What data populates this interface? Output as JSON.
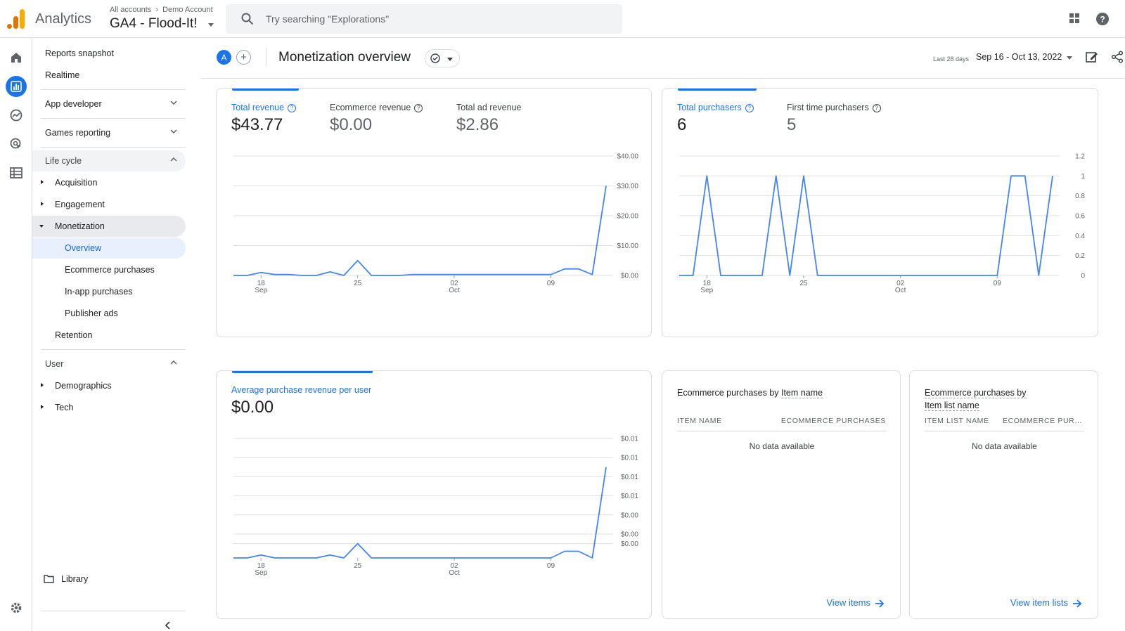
{
  "header": {
    "app_name": "Analytics",
    "breadcrumb": [
      "All accounts",
      "Demo Account"
    ],
    "property": "GA4 - Flood-It!",
    "search_placeholder": "Try searching \"Explorations\"",
    "icons": [
      "analytics-logo-icon",
      "search-icon",
      "apps-grid-icon",
      "help-icon"
    ]
  },
  "rail": {
    "icons": [
      "home-icon",
      "reports-icon",
      "explore-icon",
      "advertising-icon",
      "configure-icon",
      "settings-icon"
    ],
    "active": "reports-icon"
  },
  "nav": {
    "reports_snapshot": "Reports snapshot",
    "realtime": "Realtime",
    "app_developer": "App developer",
    "games_reporting": "Games reporting",
    "life_cycle": "Life cycle",
    "acquisition": "Acquisition",
    "engagement": "Engagement",
    "monetization": "Monetization",
    "overview": "Overview",
    "ecommerce_purchases": "Ecommerce purchases",
    "in_app_purchases": "In-app purchases",
    "publisher_ads": "Publisher ads",
    "retention": "Retention",
    "user": "User",
    "demographics": "Demographics",
    "tech": "Tech",
    "library": "Library"
  },
  "topbar": {
    "avatar_letter": "A",
    "add_symbol": "+",
    "page_title": "Monetization overview",
    "date_hint": "Last 28 days",
    "date_range": "Sep 16 - Oct 13, 2022"
  },
  "revenue_card": {
    "metrics": [
      {
        "label": "Total revenue",
        "value": "$43.77",
        "active": true
      },
      {
        "label": "Ecommerce revenue",
        "value": "$0.00",
        "active": false
      },
      {
        "label": "Total ad revenue",
        "value": "$2.86",
        "active": false
      }
    ]
  },
  "purchasers_card": {
    "metrics": [
      {
        "label": "Total purchasers",
        "value": "6",
        "active": true
      },
      {
        "label": "First time purchasers",
        "value": "5",
        "active": false
      }
    ]
  },
  "avg_card": {
    "label": "Average purchase revenue per user",
    "value": "$0.00"
  },
  "x_ticks": [
    {
      "day": 2,
      "label": "18",
      "sub": "Sep"
    },
    {
      "day": 9,
      "label": "25",
      "sub": ""
    },
    {
      "day": 16,
      "label": "02",
      "sub": "Oct"
    },
    {
      "day": 23,
      "label": "09",
      "sub": ""
    }
  ],
  "chart_data": [
    {
      "type": "line",
      "ylim": [
        0,
        40
      ],
      "y_ticks": [
        {
          "v": 40,
          "label": "$40.00"
        },
        {
          "v": 30,
          "label": "$30.00"
        },
        {
          "v": 20,
          "label": "$20.00"
        },
        {
          "v": 10,
          "label": "$10.00"
        },
        {
          "v": 0,
          "label": "$0.00"
        }
      ],
      "series": [
        {
          "values": [
            0,
            0,
            1.0,
            0.3,
            0.3,
            0,
            0,
            1.2,
            0,
            5.0,
            0,
            0,
            0,
            0.3,
            0.3,
            0.3,
            0.3,
            0.3,
            0.3,
            0.3,
            0.3,
            0.3,
            0.3,
            0.3,
            2.2,
            2.2,
            0.3,
            30.0
          ]
        }
      ]
    },
    {
      "type": "line",
      "ylim": [
        0,
        1.2
      ],
      "y_ticks": [
        {
          "v": 1.2,
          "label": "1.2"
        },
        {
          "v": 1.0,
          "label": "1"
        },
        {
          "v": 0.8,
          "label": "0.8"
        },
        {
          "v": 0.6,
          "label": "0.6"
        },
        {
          "v": 0.4,
          "label": "0.4"
        },
        {
          "v": 0.2,
          "label": "0.2"
        },
        {
          "v": 0,
          "label": "0"
        }
      ],
      "series": [
        {
          "values": [
            0,
            0,
            1,
            0,
            0,
            0,
            0,
            1,
            0,
            1,
            0,
            0,
            0,
            0,
            0,
            0,
            0,
            0,
            0,
            0,
            0,
            0,
            0,
            0,
            1,
            1,
            0,
            1
          ]
        }
      ]
    },
    {
      "type": "line",
      "ylim": [
        0,
        0.0125
      ],
      "y_ticks": [
        {
          "v": 0.0125,
          "label": "$0.01"
        },
        {
          "v": 0.0105,
          "label": "$0.01"
        },
        {
          "v": 0.0085,
          "label": "$0.01"
        },
        {
          "v": 0.0065,
          "label": "$0.01"
        },
        {
          "v": 0.0045,
          "label": "$0.00"
        },
        {
          "v": 0.0025,
          "label": "$0.00"
        },
        {
          "v": 0.0015,
          "label": "$0.00"
        }
      ],
      "series": [
        {
          "values": [
            0,
            0,
            0.0003,
            0,
            0,
            0,
            0,
            0.0003,
            0,
            0.0015,
            0,
            0,
            0,
            0,
            0,
            0,
            0,
            0,
            0,
            0,
            0,
            0,
            0,
            0,
            0.0007,
            0.0007,
            0,
            0.0095
          ]
        }
      ]
    }
  ],
  "item_table": {
    "title_prefix": "Ecommerce purchases by ",
    "title_dim": "Item name",
    "col1": "ITEM NAME",
    "col2": "ECOMMERCE PURCHASES",
    "empty": "No data available",
    "link": "View items"
  },
  "list_table": {
    "title_line1": "Ecommerce purchases by",
    "title_line2": "Item list name",
    "col1": "ITEM LIST NAME",
    "col2": "ECOMMERCE PUR…",
    "empty": "No data available",
    "link": "View item lists"
  },
  "colors": {
    "accent": "#1a73e8",
    "line": "#4285f4",
    "grid": "#e0e0e0"
  }
}
